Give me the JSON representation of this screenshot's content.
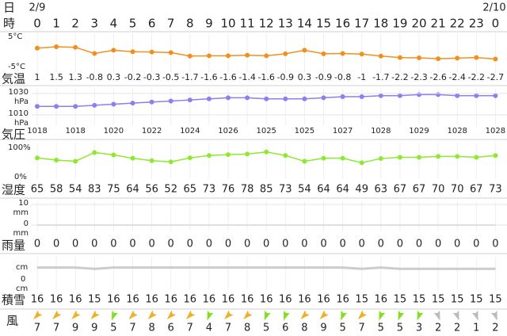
{
  "day_label": "日",
  "hour_label": "時",
  "dates": [
    {
      "label": "2/9",
      "index": 0
    },
    {
      "label": "2/10",
      "index": 24
    }
  ],
  "hours": [
    0,
    1,
    2,
    3,
    4,
    5,
    6,
    7,
    8,
    9,
    10,
    11,
    12,
    13,
    14,
    15,
    16,
    17,
    18,
    19,
    20,
    21,
    22,
    23,
    0
  ],
  "temperature": {
    "label": "気温",
    "top_label": "5°C",
    "bottom_label": "-5°C",
    "ylim": [
      -5,
      5
    ],
    "color": "#f0901e",
    "values": [
      1,
      1.5,
      1.3,
      -0.8,
      0.3,
      -0.2,
      -0.3,
      -0.5,
      -1.7,
      -1.6,
      -1.6,
      -1.4,
      -1.6,
      -0.9,
      0.3,
      -0.9,
      -0.8,
      -1,
      -1.7,
      -2.2,
      -2.3,
      -2.6,
      -2.4,
      -2.2,
      -2.7
    ]
  },
  "pressure": {
    "label": "気圧",
    "unit": "hPa",
    "yticks": [
      1030,
      1010
    ],
    "ylim": [
      1010,
      1030
    ],
    "color": "#8c7ff0",
    "values": [
      1018,
      1018,
      1018,
      1019,
      1020,
      1021,
      1022,
      1023,
      1024,
      1025,
      1026,
      1026,
      1025,
      1025,
      1025,
      1026,
      1027,
      1027,
      1028,
      1028,
      1029,
      1029,
      1028,
      1028,
      1028
    ]
  },
  "humidity": {
    "label": "湿度",
    "top_label": "100%",
    "bottom_label": "0%",
    "ylim": [
      0,
      100
    ],
    "color": "#90e830",
    "values": [
      65,
      58,
      54,
      83,
      75,
      64,
      56,
      52,
      65,
      73,
      76,
      78,
      85,
      73,
      54,
      64,
      64,
      49,
      63,
      67,
      67,
      70,
      70,
      67,
      73
    ]
  },
  "precipitation": {
    "label": "雨量",
    "unit": "mm",
    "yticks": [
      10,
      0
    ],
    "ylim": [
      0,
      10
    ],
    "color": "#bbbbbb",
    "values": [
      0,
      0,
      0,
      0,
      0,
      0,
      0,
      0,
      0,
      0,
      0,
      0,
      0,
      0,
      0,
      0,
      0,
      0,
      0,
      0,
      0,
      0,
      0,
      0,
      0
    ]
  },
  "snow": {
    "label": "積雪",
    "unit": "cm",
    "bottom_tick": 0,
    "ylim": [
      0,
      17
    ],
    "color": "#cccccc",
    "values": [
      16,
      16,
      16,
      15,
      16,
      16,
      16,
      16,
      16,
      16,
      16,
      16,
      16,
      16,
      16,
      16,
      16,
      15,
      16,
      15,
      15,
      15,
      15,
      15,
      15
    ]
  },
  "wind": {
    "label": "風",
    "directions": [
      225,
      225,
      225,
      225,
      200,
      225,
      225,
      225,
      225,
      200,
      225,
      225,
      200,
      200,
      225,
      225,
      200,
      225,
      200,
      200,
      200,
      160,
      160,
      160,
      160
    ],
    "colors": [
      "#f0b020",
      "#f0b020",
      "#f0b020",
      "#f0b020",
      "#80e020",
      "#f0b020",
      "#f0b020",
      "#f0b020",
      "#f0b020",
      "#80e020",
      "#f0b020",
      "#f0b020",
      "#80e020",
      "#80e020",
      "#f0b020",
      "#f0b020",
      "#80e020",
      "#f0b020",
      "#80e020",
      "#80e020",
      "#80e020",
      "#bbbbbb",
      "#bbbbbb",
      "#bbbbbb",
      "#bbbbbb"
    ],
    "speeds": [
      7,
      7,
      9,
      9,
      5,
      7,
      8,
      6,
      7,
      4,
      7,
      8,
      5,
      6,
      8,
      9,
      5,
      7,
      5,
      5,
      3,
      2,
      2,
      1,
      2
    ]
  }
}
